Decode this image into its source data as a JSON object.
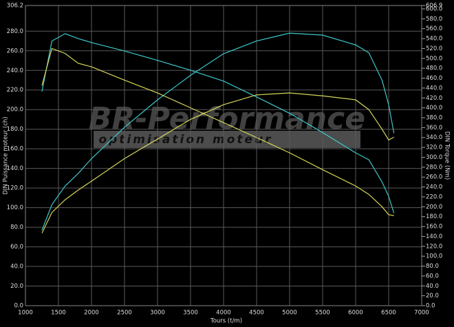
{
  "chart_data": {
    "type": "line",
    "xlabel": "Tours (t/m)",
    "ylabel": "DIN Puissance moteur (ch)",
    "y2label": "DIN Torque (Nm)",
    "watermark": [
      "BR-Performance",
      "optimisation moteur"
    ],
    "grid": true,
    "xlim": [
      1000,
      7000
    ],
    "xticks": [
      1000,
      1500,
      2000,
      2500,
      3000,
      3500,
      4000,
      4500,
      5000,
      5500,
      6000,
      6500,
      7000
    ],
    "ylim": [
      0,
      306.2
    ],
    "yticks": [
      {
        "value": 0,
        "label": "0.0"
      },
      {
        "value": 20,
        "label": "20.0"
      },
      {
        "value": 40,
        "label": "40.0"
      },
      {
        "value": 60,
        "label": "60.0"
      },
      {
        "value": 80,
        "label": "80.0"
      },
      {
        "value": 100,
        "label": "100.0"
      },
      {
        "value": 120,
        "label": "120.0"
      },
      {
        "value": 140,
        "label": "140.0"
      },
      {
        "value": 160,
        "label": "160.0"
      },
      {
        "value": 180,
        "label": "180.0"
      },
      {
        "value": 200,
        "label": "200.0"
      },
      {
        "value": 220,
        "label": "220.0"
      },
      {
        "value": 240,
        "label": "240.0"
      },
      {
        "value": 260,
        "label": "260.0"
      },
      {
        "value": 280,
        "label": "280.0"
      },
      306.2
    ],
    "y2lim": [
      0,
      606.9
    ],
    "y2ticks": [
      {
        "value": 0,
        "label": "0.0"
      },
      {
        "value": 20,
        "label": "20.0"
      },
      {
        "value": 40,
        "label": "40.0"
      },
      {
        "value": 60,
        "label": "60.0"
      },
      {
        "value": 80,
        "label": "80.0"
      },
      {
        "value": 100,
        "label": "100.0"
      },
      {
        "value": 120,
        "label": "120.0"
      },
      {
        "value": 140,
        "label": "140.0"
      },
      {
        "value": 160,
        "label": "160.0"
      },
      {
        "value": 180,
        "label": "180.0"
      },
      {
        "value": 200,
        "label": "200.0"
      },
      {
        "value": 220,
        "label": "220.0"
      },
      {
        "value": 240,
        "label": "240.0"
      },
      {
        "value": 260,
        "label": "260.0"
      },
      {
        "value": 280,
        "label": "280.0"
      },
      {
        "value": 300,
        "label": "300.0"
      },
      {
        "value": 320,
        "label": "320.0"
      },
      {
        "value": 340,
        "label": "340.0"
      },
      {
        "value": 360,
        "label": "360.0"
      },
      {
        "value": 380,
        "label": "380.0"
      },
      {
        "value": 400,
        "label": "400.0"
      },
      {
        "value": 420,
        "label": "420.0"
      },
      {
        "value": 440,
        "label": "440.0"
      },
      {
        "value": 460,
        "label": "460.0"
      },
      {
        "value": 480,
        "label": "480.0"
      },
      {
        "value": 500,
        "label": "500.0"
      },
      {
        "value": 520,
        "label": "520.0"
      },
      {
        "value": 540,
        "label": "540.0"
      },
      {
        "value": 560,
        "label": "560.0"
      },
      {
        "value": 580,
        "label": "580.0"
      },
      {
        "value": 600,
        "label": "600.0"
      },
      606.9
    ],
    "x": [
      1250,
      1400,
      1600,
      1800,
      2000,
      2500,
      3000,
      3500,
      4000,
      4500,
      5000,
      5500,
      6000,
      6200,
      6400,
      6500,
      6580
    ],
    "series": [
      {
        "color": "#3ec8cc",
        "values": [
          77,
          103,
          122,
          135,
          150,
          182,
          210,
          235,
          257,
          270,
          278,
          276,
          266,
          258,
          230,
          205,
          176
        ]
      },
      {
        "color": "#d6d65a",
        "values": [
          74,
          95,
          108,
          118,
          127,
          150,
          170,
          190,
          205,
          215,
          217,
          214,
          210,
          200,
          180,
          169,
          172
        ]
      },
      {
        "color": "#3ec8cc",
        "axis": "y2",
        "values": [
          433,
          535,
          550,
          540,
          532,
          515,
          496,
          476,
          454,
          422,
          389,
          350,
          309,
          295,
          250,
          221,
          187
        ]
      },
      {
        "color": "#d6d65a",
        "axis": "y2",
        "values": [
          445,
          520,
          510,
          490,
          483,
          456,
          430,
          400,
          370,
          340,
          309,
          275,
          242,
          225,
          200,
          184,
          182
        ]
      }
    ]
  }
}
